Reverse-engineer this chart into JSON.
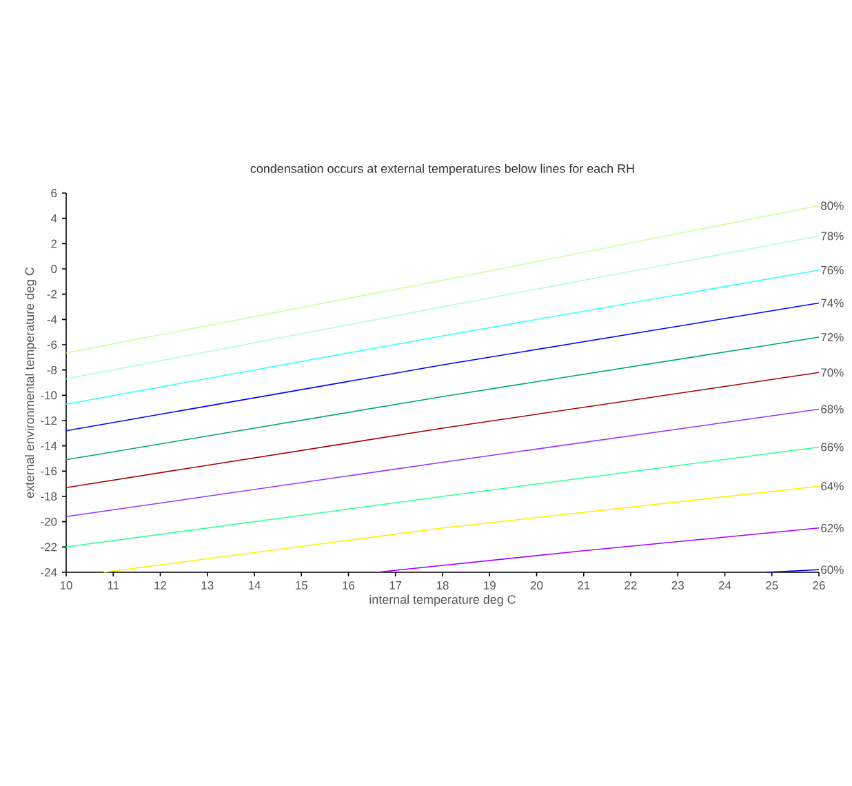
{
  "chart_data": {
    "type": "line",
    "title": "condensation occurs at external temperatures below lines for each RH",
    "xlabel": "internal temperature deg C",
    "ylabel": "external environmental temperature deg C",
    "xlim": [
      10,
      26
    ],
    "xticks": [
      10,
      11,
      12,
      13,
      14,
      15,
      16,
      17,
      18,
      19,
      20,
      21,
      22,
      23,
      24,
      25,
      26
    ],
    "ylim": [
      -24,
      6
    ],
    "yticks": [
      -24,
      -22,
      -20,
      -18,
      -16,
      -14,
      -12,
      -10,
      -8,
      -6,
      -4,
      -2,
      0,
      2,
      4,
      6
    ],
    "grid": false,
    "legend": false,
    "marker": "none",
    "line_style": "solid",
    "series": [
      {
        "name": "80%",
        "color": "#ccff99",
        "x": [
          10,
          18,
          26
        ],
        "values": [
          -6.65,
          -0.9,
          5.0
        ]
      },
      {
        "name": "78%",
        "color": "#aaffdd",
        "x": [
          10,
          18,
          26
        ],
        "values": [
          -8.7,
          -3.0,
          2.6
        ]
      },
      {
        "name": "76%",
        "color": "#33ffff",
        "x": [
          10,
          18,
          26
        ],
        "values": [
          -10.7,
          -5.3,
          -0.1
        ]
      },
      {
        "name": "74%",
        "color": "#0000ff",
        "x": [
          10,
          18,
          26
        ],
        "values": [
          -12.8,
          -7.6,
          -2.7
        ]
      },
      {
        "name": "72%",
        "color": "#00aa66",
        "x": [
          10,
          18,
          26
        ],
        "values": [
          -15.1,
          -10.1,
          -5.4
        ]
      },
      {
        "name": "70%",
        "color": "#aa0000",
        "x": [
          10,
          18,
          26
        ],
        "values": [
          -17.3,
          -12.6,
          -8.2
        ]
      },
      {
        "name": "68%",
        "color": "#9933ff",
        "x": [
          10,
          18,
          26
        ],
        "values": [
          -19.6,
          -15.3,
          -11.1
        ]
      },
      {
        "name": "66%",
        "color": "#33ff99",
        "x": [
          10,
          18,
          26
        ],
        "values": [
          -22.0,
          -18.0,
          -14.1
        ]
      },
      {
        "name": "64%",
        "color": "#ffee00",
        "x": [
          10.8,
          18,
          26
        ],
        "values": [
          -24,
          -20.5,
          -17.2
        ]
      },
      {
        "name": "62%",
        "color": "#aa00ff",
        "x": [
          16.6,
          21,
          26
        ],
        "values": [
          -24,
          -22.3,
          -20.5
        ]
      },
      {
        "name": "60%",
        "color": "#0000cc",
        "x": [
          24.9,
          26
        ],
        "values": [
          -24,
          -23.8
        ]
      }
    ]
  }
}
